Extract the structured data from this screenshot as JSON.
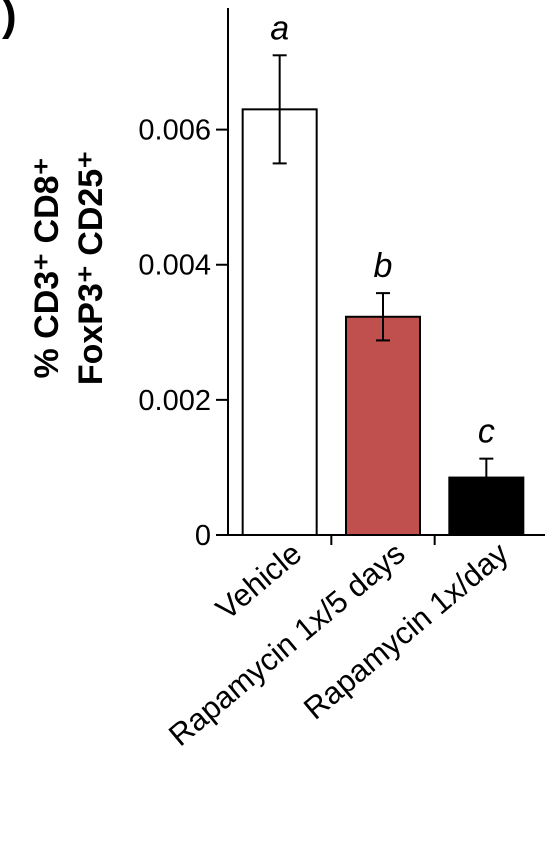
{
  "panel_label": ")",
  "chart_data": {
    "type": "bar",
    "categories": [
      "Vehicle",
      "Rapamycin 1x/5 days",
      "Rapamycin 1x/day"
    ],
    "values": [
      0.0063,
      0.00323,
      0.00085
    ],
    "errors": [
      0.0008,
      0.00035,
      0.00028
    ],
    "letters": [
      "a",
      "b",
      "c"
    ],
    "bar_colors": [
      "#ffffff",
      "#c0504d",
      "#000000"
    ],
    "ylabel_line1": "% CD3⁺ CD8⁺",
    "ylabel_line2": "FoxP3⁺ CD25⁺",
    "yticks": [
      0,
      0.002,
      0.004,
      0.006
    ],
    "ytick_labels": [
      "0",
      "0.002",
      "0.004",
      "0.006"
    ],
    "ylim": [
      0,
      0.0078
    ],
    "grid": false
  }
}
